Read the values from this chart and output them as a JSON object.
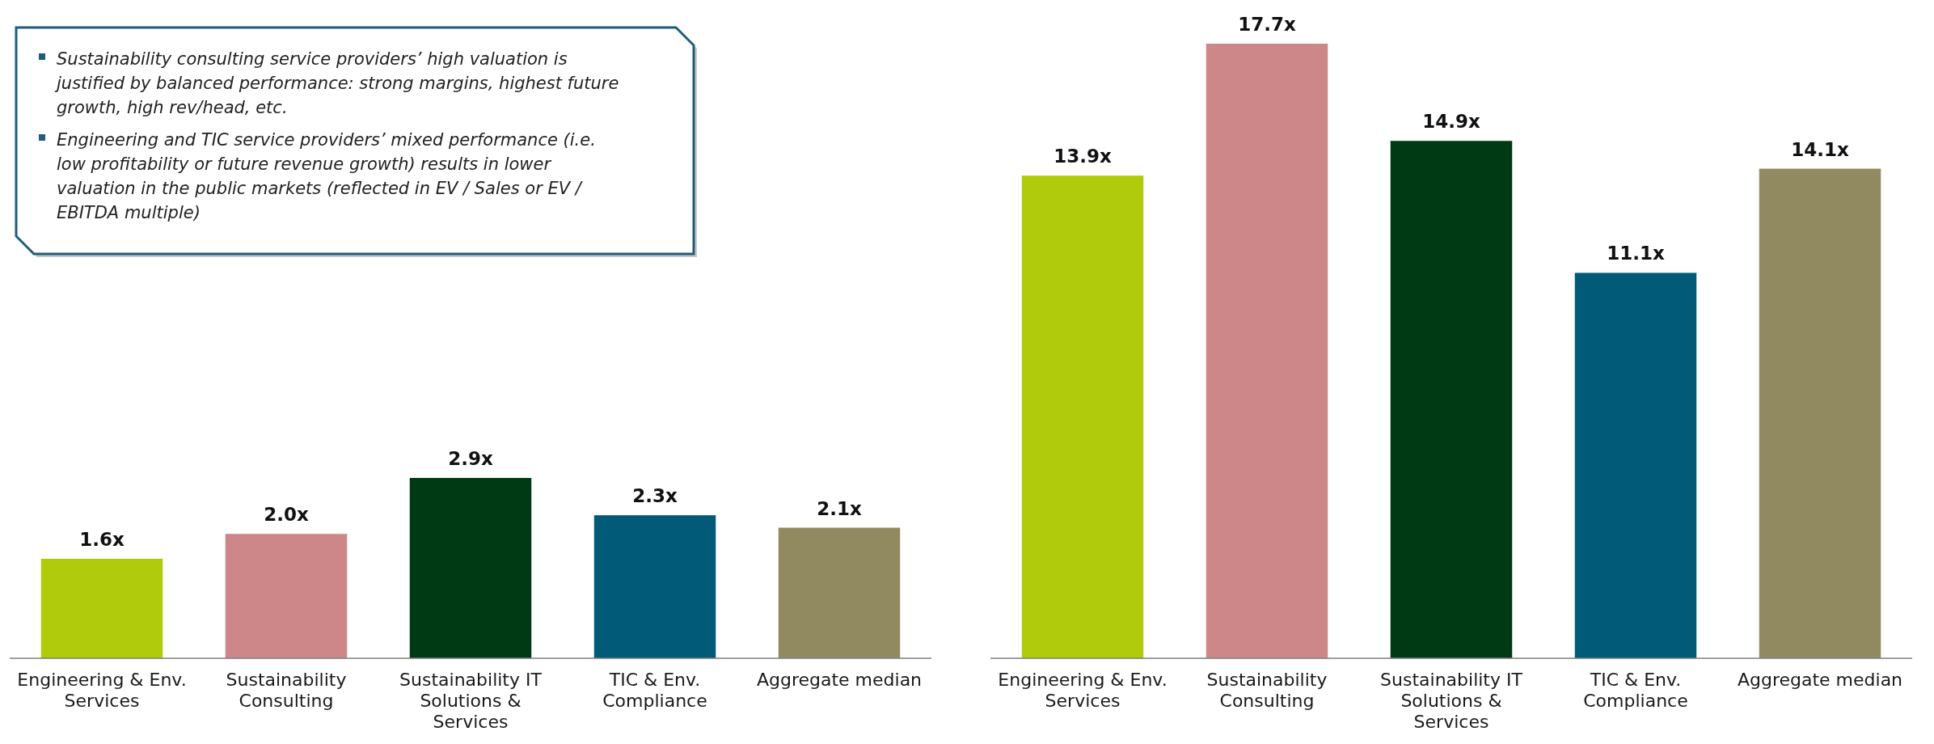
{
  "chart_data": [
    {
      "type": "bar",
      "categories": [
        "Engineering & Env. Services",
        "Sustainability Consulting",
        "Sustainability IT Solutions & Services",
        "TIC & Env. Compliance",
        "Aggregate median"
      ],
      "values": [
        1.6,
        2.0,
        2.9,
        2.3,
        2.1
      ],
      "colors": [
        "#b0cb0b",
        "#cd8789",
        "#003a14",
        "#005a78",
        "#918a61"
      ],
      "value_labels": [
        "1.6x",
        "2.0x",
        "2.9x",
        "2.3x",
        "2.1x"
      ],
      "annotations": [
        "Sustainability consulting service providers’ high valuation is justified by balanced performance: strong margins, highest future growth, high rev/head, etc.",
        "Engineering and TIC service providers’ mixed performance (i.e. low profitability or future revenue growth) results in lower valuation in the public markets (reflected in EV / Sales or EV / EBITDA multiple)"
      ]
    },
    {
      "type": "bar",
      "categories": [
        "Engineering & Env. Services",
        "Sustainability Consulting",
        "Sustainability IT Solutions & Services",
        "TIC & Env. Compliance",
        "Aggregate median"
      ],
      "values": [
        13.9,
        17.7,
        14.9,
        11.1,
        14.1
      ],
      "colors": [
        "#b0cb0b",
        "#cd8789",
        "#003a14",
        "#005a78",
        "#918a61"
      ],
      "value_labels": [
        "13.9x",
        "17.7x",
        "14.9x",
        "11.1x",
        "14.1x"
      ]
    }
  ]
}
